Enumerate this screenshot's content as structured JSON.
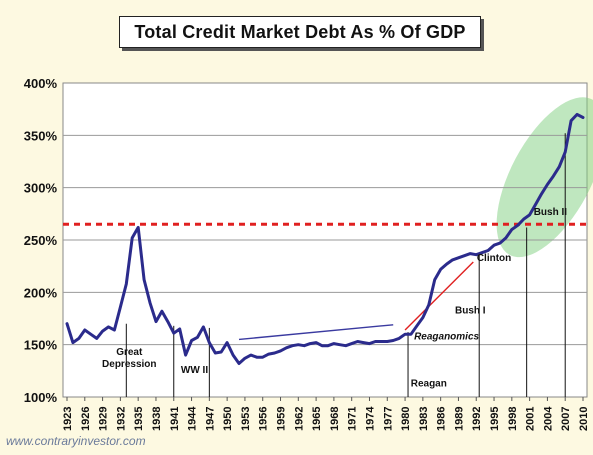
{
  "chart_data": {
    "type": "line",
    "title": "Total Credit Market Debt As % Of GDP",
    "xlabel": "",
    "ylabel": "",
    "ylim": [
      100,
      400
    ],
    "xlim": [
      1923,
      2010.5
    ],
    "grid": true,
    "y_ticks": [
      "100%",
      "150%",
      "200%",
      "250%",
      "300%",
      "350%",
      "400%"
    ],
    "y_tick_values": [
      100,
      150,
      200,
      250,
      300,
      350,
      400
    ],
    "x_ticks": [
      "1923",
      "1926",
      "1929",
      "1932",
      "1935",
      "1938",
      "1941",
      "1944",
      "1947",
      "1950",
      "1953",
      "1956",
      "1959",
      "1962",
      "1965",
      "1968",
      "1971",
      "1974",
      "1977",
      "1980",
      "1983",
      "1986",
      "1989",
      "1992",
      "1995",
      "1998",
      "2001",
      "2004",
      "2007",
      "2010"
    ],
    "x_tick_values": [
      1923,
      1926,
      1929,
      1932,
      1935,
      1938,
      1941,
      1944,
      1947,
      1950,
      1953,
      1956,
      1959,
      1962,
      1965,
      1968,
      1971,
      1974,
      1977,
      1980,
      1983,
      1986,
      1989,
      1992,
      1995,
      1998,
      2001,
      2004,
      2007,
      2010
    ],
    "colors": {
      "series": "#2b2b8c",
      "threshold": "#e02020",
      "trend_blue": "#3a3aa0",
      "trend_red": "#e02020",
      "highlight": "#7fd07f"
    },
    "series": [
      {
        "x": [
          1923,
          1924,
          1925,
          1926,
          1927,
          1928,
          1929,
          1930,
          1931,
          1932,
          1933,
          1934,
          1935,
          1936,
          1937,
          1938,
          1939,
          1940,
          1941,
          1942,
          1943,
          1944,
          1945,
          1946,
          1947,
          1948,
          1949,
          1950,
          1951,
          1952,
          1953,
          1954,
          1955,
          1956,
          1957,
          1958,
          1959,
          1960,
          1961,
          1962,
          1963,
          1964,
          1965,
          1966,
          1967,
          1968,
          1969,
          1970,
          1971,
          1972,
          1973,
          1974,
          1975,
          1976,
          1977,
          1978,
          1979,
          1980,
          1981,
          1982,
          1983,
          1984,
          1985,
          1986,
          1987,
          1988,
          1989,
          1990,
          1991,
          1992,
          1993,
          1994,
          1995,
          1996,
          1997,
          1998,
          1999,
          2000,
          2001,
          2002,
          2003,
          2004,
          2005,
          2006,
          2007,
          2008,
          2009,
          2010
        ],
        "y": [
          170,
          152,
          156,
          164,
          160,
          156,
          163,
          167,
          164,
          186,
          208,
          252,
          262,
          212,
          190,
          172,
          182,
          172,
          161,
          165,
          140,
          154,
          157,
          167,
          152,
          142,
          143,
          152,
          140,
          132,
          137,
          140,
          138,
          138,
          141,
          142,
          144,
          147,
          149,
          150,
          149,
          151,
          152,
          149,
          149,
          151,
          150,
          149,
          151,
          153,
          152,
          151,
          153,
          153,
          153,
          154,
          156,
          160,
          160,
          168,
          176,
          188,
          212,
          222,
          227,
          231,
          233,
          235,
          237,
          236,
          238,
          240,
          245,
          247,
          252,
          260,
          264,
          270,
          274,
          284,
          294,
          303,
          311,
          320,
          334,
          364,
          370,
          367
        ]
      }
    ],
    "threshold_line": {
      "y": 265
    },
    "trend_lines": [
      {
        "x": [
          1952,
          1978
        ],
        "y": [
          155,
          169
        ]
      },
      {
        "x": [
          1980,
          1991.5
        ],
        "y": [
          164,
          229
        ]
      }
    ],
    "annotations": [
      {
        "text": "Great Depression",
        "lines": [
          "Great",
          "Depression"
        ],
        "x": 1933.5,
        "y": 140,
        "marker_x": 1933
      },
      {
        "text": "WW II",
        "lines": [
          "WW II"
        ],
        "x": 1944.5,
        "y": 123,
        "marker_x": 1941
      },
      {
        "text": "Reaganomics",
        "lines": [
          "Reaganomics"
        ],
        "x": 1987,
        "y": 155
      },
      {
        "text": "Reagan",
        "lines": [
          "Reagan"
        ],
        "x": 1984,
        "y": 110,
        "marker_x": 1980.5
      },
      {
        "text": "Bush I",
        "lines": [
          "Bush I"
        ],
        "x": 1991,
        "y": 180
      },
      {
        "text": "Clinton",
        "lines": [
          "Clinton"
        ],
        "x": 1995,
        "y": 230,
        "marker_x": 1992.5
      },
      {
        "text": "Bush II",
        "lines": [
          "Bush II"
        ],
        "x": 2004.5,
        "y": 274,
        "marker_x": 2000.5
      }
    ]
  },
  "watermark": "www.contraryinvestor.com"
}
